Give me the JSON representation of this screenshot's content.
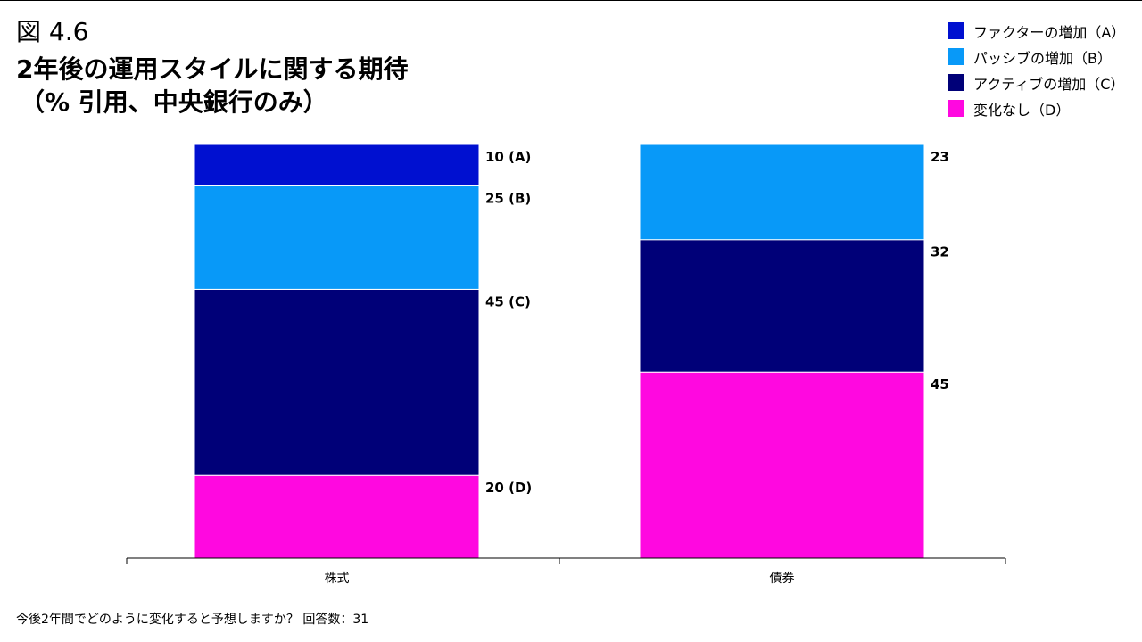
{
  "header": {
    "figure_number": "図 4.6",
    "title_line1": "2年後の運用スタイルに関する期待",
    "title_line2": "（% 引用、中央銀行のみ）"
  },
  "legend": {
    "placement": "top-right",
    "items": [
      {
        "label": "ファクターの増加（A）",
        "color": "#0010d0"
      },
      {
        "label": "パッシブの増加（B）",
        "color": "#0899f8"
      },
      {
        "label": "アクティブの増加（C）",
        "color": "#000078"
      },
      {
        "label": "変化なし（D）",
        "color": "#ff08e0"
      }
    ]
  },
  "footnote": "今後2年間でどのように変化すると予想しますか？ 回答数：31",
  "chart_data": {
    "type": "bar",
    "stacked": true,
    "normalized_percent": true,
    "categories": [
      "株式",
      "債券"
    ],
    "series": [
      {
        "name": "ファクターの増加（A）",
        "color": "#0010d0",
        "values": [
          10,
          0
        ],
        "labels": [
          "10 (A)",
          ""
        ]
      },
      {
        "name": "パッシブの増加（B）",
        "color": "#0899f8",
        "values": [
          25,
          23
        ],
        "labels": [
          "25 (B)",
          "23"
        ]
      },
      {
        "name": "アクティブの増加（C）",
        "color": "#000078",
        "values": [
          45,
          32
        ],
        "labels": [
          "45 (C)",
          "32"
        ]
      },
      {
        "name": "変化なし（D）",
        "color": "#ff08e0",
        "values": [
          20,
          45
        ],
        "labels": [
          "20 (D)",
          "45"
        ]
      }
    ],
    "ylim": [
      0,
      100
    ],
    "grid": false
  }
}
